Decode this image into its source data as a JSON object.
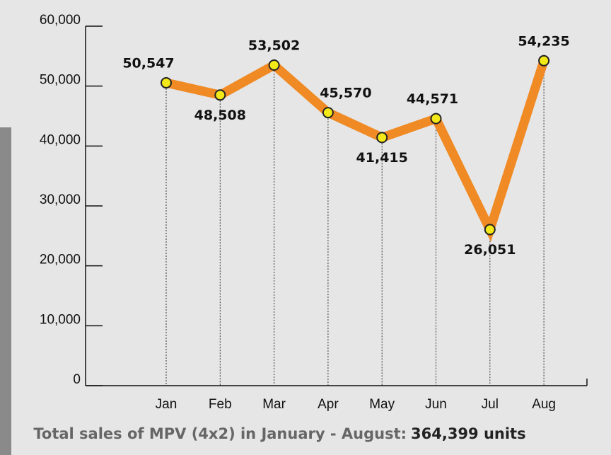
{
  "chart_data": {
    "type": "line",
    "categories": [
      "Jan",
      "Feb",
      "Mar",
      "Apr",
      "May",
      "Jun",
      "Jul",
      "Aug"
    ],
    "values": [
      50547,
      48508,
      53502,
      45570,
      41415,
      44571,
      26051,
      54235
    ],
    "value_labels": [
      "50,547",
      "48,508",
      "53,502",
      "45,570",
      "41,415",
      "44,571",
      "26,051",
      "54,235"
    ],
    "color": "#f08a24",
    "marker_color": "#f3e818",
    "ylim": [
      0,
      60000
    ],
    "yticks": [
      0,
      {
        "value": 10000,
        "label": "10,000"
      },
      {
        "value": 20000,
        "label": "20,000"
      },
      {
        "value": 30000,
        "label": "30,000"
      },
      {
        "value": 40000,
        "label": "40,000"
      },
      {
        "value": 50000,
        "label": "50,000"
      },
      {
        "value": 60000,
        "label": "60,000"
      }
    ],
    "caption": "Total sales of MPV (4x2) in January - August:",
    "caption_value": "364,399 units"
  }
}
